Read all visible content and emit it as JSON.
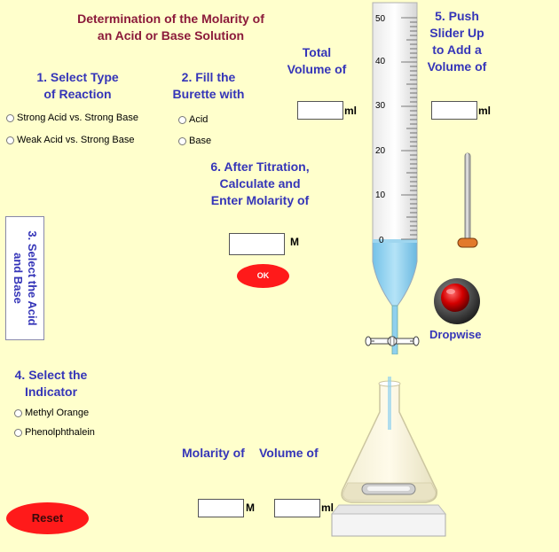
{
  "header": {
    "title_line1": "Determination of the Molarity of",
    "title_line2": "an Acid or Base Solution"
  },
  "step1": {
    "line1": "1. Select Type",
    "line2": "of Reaction",
    "options": [
      "Strong Acid vs. Strong Base",
      "Weak Acid vs. Strong Base"
    ]
  },
  "step2": {
    "line1": "2. Fill the",
    "line2": "Burette with",
    "options": [
      "Acid",
      "Base"
    ]
  },
  "total_volume": {
    "line1": "Total",
    "line2": "Volume of",
    "unit": "ml",
    "value": ""
  },
  "step3": {
    "line1": "3. Select the Acid",
    "line2": "and Base"
  },
  "step4": {
    "line1": "4. Select the",
    "line2": "Indicator",
    "options": [
      "Methyl Orange",
      "Phenolphthalein"
    ]
  },
  "step5": {
    "line1": "5. Push",
    "line2": "Slider Up",
    "line3": "to Add a",
    "line4": "Volume of",
    "unit": "ml",
    "value": ""
  },
  "step6": {
    "line1": "6. After Titration,",
    "line2": "Calculate and",
    "line3": "Enter Molarity of",
    "unit": "M",
    "value": "",
    "ok_label": "OK"
  },
  "burette": {
    "scale_labels": [
      "50",
      "40",
      "30",
      "20",
      "10",
      "0"
    ],
    "fill_level": 0.0
  },
  "dropwise_label": "Dropwise",
  "bottom": {
    "molarity_label": "Molarity of",
    "volume_label": "Volume of",
    "molarity_unit": "M",
    "volume_unit": "ml",
    "molarity_value": "",
    "volume_value": ""
  },
  "reset_label": "Reset",
  "colors": {
    "background": "#ffffcc",
    "title": "#8b1a3a",
    "heading": "#3535b8",
    "button_red": "#ff1a1a",
    "liquid": "#8fd0ee"
  }
}
